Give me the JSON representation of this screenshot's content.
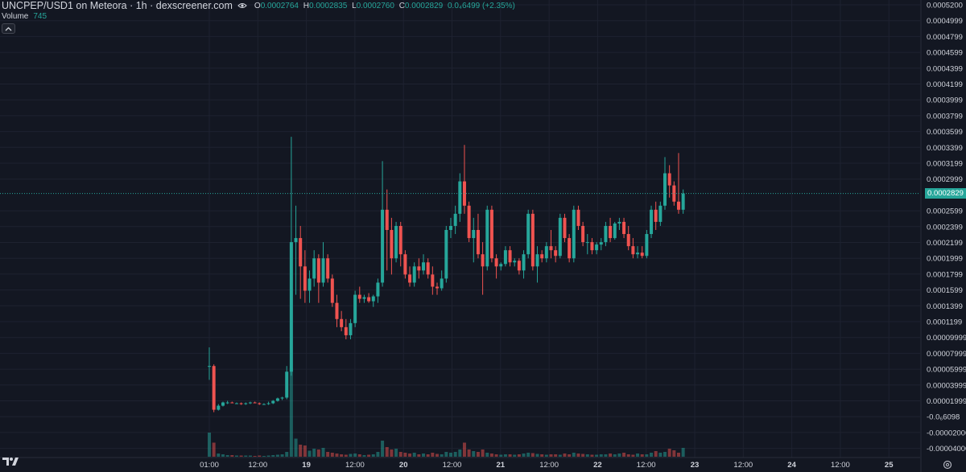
{
  "header": {
    "title": "UNCPEP/USD1 on Meteora · 1h · dexscreener.com",
    "ohlc": {
      "o_label": "O",
      "o_value": "0.0002764",
      "h_label": "H",
      "h_value": "0.0002835",
      "l_label": "L",
      "l_value": "0.0002760",
      "c_label": "C",
      "c_value": "0.0002829",
      "change": "0.0₄6499 (+2.35%)"
    },
    "volume_label": "Volume",
    "volume_value": "745"
  },
  "icons": {
    "eye": "eye-icon",
    "collapse": "chevron-up-icon",
    "logo": "tradingview-logo",
    "settings": "gear-icon"
  },
  "colors": {
    "background": "#131722",
    "up": "#26a69a",
    "down": "#ef5350",
    "grid": "#1e2230",
    "text": "#d1d4dc"
  },
  "price_axis": {
    "labels": [
      "0.0005200",
      "0.0004999",
      "0.0004799",
      "0.0004599",
      "0.0004399",
      "0.0004199",
      "0.0003999",
      "0.0003799",
      "0.0003599",
      "0.0003399",
      "0.0003199",
      "0.0002999",
      "0.0002599",
      "0.0002399",
      "0.0002199",
      "0.0001999",
      "0.0001799",
      "0.0001599",
      "0.0001399",
      "0.0001199",
      "0.00009999",
      "0.00007999",
      "0.00005999",
      "0.00003999",
      "0.00001999",
      "-0.0₆6098",
      "-0.00002000",
      "-0.00004000"
    ],
    "current_price": "0.0002829"
  },
  "time_axis": {
    "labels": [
      "01:00",
      "12:00",
      "19",
      "12:00",
      "20",
      "12:00",
      "21",
      "12:00",
      "22",
      "12:00",
      "23",
      "12:00",
      "24",
      "12:00",
      "25"
    ]
  },
  "chart_data": {
    "type": "candlestick",
    "title": "UNCPEP/USD1 on Meteora · 1h · dexscreener.com",
    "y_range": [
      -4e-05,
      0.00052
    ],
    "interval": "1h",
    "candles": [
      {
        "o": 7.2e-05,
        "h": 9.5e-05,
        "l": 5.5e-05,
        "c": 7.2e-05
      },
      {
        "o": 7.2e-05,
        "h": 7.4e-05,
        "l": 1.5e-05,
        "c": 1.8e-05
      },
      {
        "o": 1.8e-05,
        "h": 2.5e-05,
        "l": 1.7e-05,
        "c": 2.3e-05
      },
      {
        "o": 2.3e-05,
        "h": 2.8e-05,
        "l": 2.2e-05,
        "c": 2.7e-05
      },
      {
        "o": 2.7e-05,
        "h": 2.9e-05,
        "l": 2.5e-05,
        "c": 2.7e-05
      },
      {
        "o": 2.7e-05,
        "h": 2.8e-05,
        "l": 2.6e-05,
        "c": 2.6e-05
      },
      {
        "o": 2.6e-05,
        "h": 2.7e-05,
        "l": 2.5e-05,
        "c": 2.6e-05
      },
      {
        "o": 2.6e-05,
        "h": 2.7e-05,
        "l": 2.4e-05,
        "c": 2.5e-05
      },
      {
        "o": 2.5e-05,
        "h": 2.7e-05,
        "l": 2.4e-05,
        "c": 2.6e-05
      },
      {
        "o": 2.6e-05,
        "h": 2.8e-05,
        "l": 2.5e-05,
        "c": 2.7e-05
      },
      {
        "o": 2.7e-05,
        "h": 2.8e-05,
        "l": 2.6e-05,
        "c": 2.6e-05
      },
      {
        "o": 2.6e-05,
        "h": 2.7e-05,
        "l": 2.4e-05,
        "c": 2.5e-05
      },
      {
        "o": 2.5e-05,
        "h": 2.6e-05,
        "l": 2.4e-05,
        "c": 2.5e-05
      },
      {
        "o": 2.5e-05,
        "h": 2.8e-05,
        "l": 2.4e-05,
        "c": 2.6e-05
      },
      {
        "o": 2.6e-05,
        "h": 3e-05,
        "l": 2.5e-05,
        "c": 2.9e-05
      },
      {
        "o": 2.9e-05,
        "h": 3.3e-05,
        "l": 2.8e-05,
        "c": 3.2e-05
      },
      {
        "o": 3.2e-05,
        "h": 3.4e-05,
        "l": 3e-05,
        "c": 3.3e-05
      },
      {
        "o": 3.3e-05,
        "h": 7.2e-05,
        "l": 3.1e-05,
        "c": 6.5e-05
      },
      {
        "o": 6.5e-05,
        "h": 0.000355,
        "l": 6e-05,
        "c": 0.000225
      },
      {
        "o": 0.000225,
        "h": 0.00027,
        "l": 0.00016,
        "c": 0.00023
      },
      {
        "o": 0.00023,
        "h": 0.000245,
        "l": 0.000155,
        "c": 0.000195
      },
      {
        "o": 0.000195,
        "h": 0.000215,
        "l": 0.00015,
        "c": 0.000165
      },
      {
        "o": 0.000165,
        "h": 0.00019,
        "l": 0.00015,
        "c": 0.00018
      },
      {
        "o": 0.00018,
        "h": 0.000215,
        "l": 0.00017,
        "c": 0.000205
      },
      {
        "o": 0.000205,
        "h": 0.00021,
        "l": 0.00015,
        "c": 0.000175
      },
      {
        "o": 0.000175,
        "h": 0.000225,
        "l": 0.00017,
        "c": 0.000205
      },
      {
        "o": 0.000205,
        "h": 0.00021,
        "l": 0.000175,
        "c": 0.00018
      },
      {
        "o": 0.00018,
        "h": 0.000185,
        "l": 0.000145,
        "c": 0.00015
      },
      {
        "o": 0.00015,
        "h": 0.00016,
        "l": 0.00012,
        "c": 0.00013
      },
      {
        "o": 0.00013,
        "h": 0.00014,
        "l": 0.000115,
        "c": 0.00012
      },
      {
        "o": 0.00012,
        "h": 0.00013,
        "l": 0.000105,
        "c": 0.00011
      },
      {
        "o": 0.00011,
        "h": 0.00013,
        "l": 0.000105,
        "c": 0.000125
      },
      {
        "o": 0.000125,
        "h": 0.000165,
        "l": 0.00012,
        "c": 0.00016
      },
      {
        "o": 0.00016,
        "h": 0.00017,
        "l": 0.00015,
        "c": 0.000155
      },
      {
        "o": 0.000155,
        "h": 0.00016,
        "l": 0.00015,
        "c": 0.000157
      },
      {
        "o": 0.000157,
        "h": 0.000162,
        "l": 0.00015,
        "c": 0.000152
      },
      {
        "o": 0.000152,
        "h": 0.00016,
        "l": 0.000145,
        "c": 0.000158
      },
      {
        "o": 0.000158,
        "h": 0.00018,
        "l": 0.00015,
        "c": 0.000175
      },
      {
        "o": 0.000175,
        "h": 0.000325,
        "l": 0.00017,
        "c": 0.000265
      },
      {
        "o": 0.000265,
        "h": 0.00029,
        "l": 0.00019,
        "c": 0.00024
      },
      {
        "o": 0.00024,
        "h": 0.000255,
        "l": 0.000185,
        "c": 0.000205
      },
      {
        "o": 0.000205,
        "h": 0.00025,
        "l": 0.0002,
        "c": 0.000245
      },
      {
        "o": 0.000245,
        "h": 0.00025,
        "l": 0.000195,
        "c": 0.00021
      },
      {
        "o": 0.00021,
        "h": 0.000215,
        "l": 0.00018,
        "c": 0.000185
      },
      {
        "o": 0.000185,
        "h": 0.000195,
        "l": 0.00017,
        "c": 0.000175
      },
      {
        "o": 0.000175,
        "h": 0.0002,
        "l": 0.00017,
        "c": 0.000195
      },
      {
        "o": 0.000195,
        "h": 0.000205,
        "l": 0.00018,
        "c": 0.00019
      },
      {
        "o": 0.00019,
        "h": 0.00021,
        "l": 0.000185,
        "c": 0.0002
      },
      {
        "o": 0.0002,
        "h": 0.000205,
        "l": 0.00018,
        "c": 0.000185
      },
      {
        "o": 0.000185,
        "h": 0.000195,
        "l": 0.00016,
        "c": 0.00017
      },
      {
        "o": 0.00017,
        "h": 0.000175,
        "l": 0.00016,
        "c": 0.000168
      },
      {
        "o": 0.000168,
        "h": 0.00019,
        "l": 0.000165,
        "c": 0.00018
      },
      {
        "o": 0.00018,
        "h": 0.000245,
        "l": 0.000175,
        "c": 0.00024
      },
      {
        "o": 0.00024,
        "h": 0.000255,
        "l": 0.00023,
        "c": 0.000245
      },
      {
        "o": 0.000245,
        "h": 0.00027,
        "l": 0.000235,
        "c": 0.00026
      },
      {
        "o": 0.00026,
        "h": 0.00031,
        "l": 0.00025,
        "c": 0.0003
      },
      {
        "o": 0.0003,
        "h": 0.000345,
        "l": 0.00026,
        "c": 0.00027
      },
      {
        "o": 0.00027,
        "h": 0.000275,
        "l": 0.000225,
        "c": 0.00023
      },
      {
        "o": 0.00023,
        "h": 0.000255,
        "l": 0.0002,
        "c": 0.00024
      },
      {
        "o": 0.00024,
        "h": 0.00026,
        "l": 0.000205,
        "c": 0.00021
      },
      {
        "o": 0.00021,
        "h": 0.000225,
        "l": 0.00016,
        "c": 0.000195
      },
      {
        "o": 0.000195,
        "h": 0.00027,
        "l": 0.00019,
        "c": 0.000265
      },
      {
        "o": 0.000265,
        "h": 0.00027,
        "l": 0.0002,
        "c": 0.000205
      },
      {
        "o": 0.000205,
        "h": 0.00021,
        "l": 0.00018,
        "c": 0.000195
      },
      {
        "o": 0.000195,
        "h": 0.0002,
        "l": 0.00019,
        "c": 0.000198
      },
      {
        "o": 0.000198,
        "h": 0.00022,
        "l": 0.000195,
        "c": 0.000215
      },
      {
        "o": 0.000215,
        "h": 0.00022,
        "l": 0.000195,
        "c": 0.0002
      },
      {
        "o": 0.0002,
        "h": 0.000205,
        "l": 0.000195,
        "c": 0.000202
      },
      {
        "o": 0.000202,
        "h": 0.000205,
        "l": 0.000185,
        "c": 0.00019
      },
      {
        "o": 0.00019,
        "h": 0.000215,
        "l": 0.00018,
        "c": 0.00021
      },
      {
        "o": 0.00021,
        "h": 0.000265,
        "l": 0.000205,
        "c": 0.00026
      },
      {
        "o": 0.00026,
        "h": 0.000265,
        "l": 0.00019,
        "c": 0.000195
      },
      {
        "o": 0.000195,
        "h": 0.00022,
        "l": 0.000175,
        "c": 0.00021
      },
      {
        "o": 0.00021,
        "h": 0.000215,
        "l": 0.0002,
        "c": 0.000205
      },
      {
        "o": 0.000205,
        "h": 0.000225,
        "l": 0.0002,
        "c": 0.00022
      },
      {
        "o": 0.00022,
        "h": 0.00024,
        "l": 0.000205,
        "c": 0.000215
      },
      {
        "o": 0.000215,
        "h": 0.00022,
        "l": 0.0002,
        "c": 0.000208
      },
      {
        "o": 0.000208,
        "h": 0.00026,
        "l": 0.000205,
        "c": 0.000255
      },
      {
        "o": 0.000255,
        "h": 0.00026,
        "l": 0.000225,
        "c": 0.00023
      },
      {
        "o": 0.00023,
        "h": 0.000235,
        "l": 0.0002,
        "c": 0.000205
      },
      {
        "o": 0.000205,
        "h": 0.00027,
        "l": 0.0002,
        "c": 0.000265
      },
      {
        "o": 0.000265,
        "h": 0.00027,
        "l": 0.00024,
        "c": 0.000245
      },
      {
        "o": 0.000245,
        "h": 0.00025,
        "l": 0.00022,
        "c": 0.000225
      },
      {
        "o": 0.000225,
        "h": 0.000235,
        "l": 0.00021,
        "c": 0.000225
      },
      {
        "o": 0.000225,
        "h": 0.00023,
        "l": 0.00021,
        "c": 0.000215
      },
      {
        "o": 0.000215,
        "h": 0.000225,
        "l": 0.00021,
        "c": 0.000222
      },
      {
        "o": 0.000222,
        "h": 0.00023,
        "l": 0.000215,
        "c": 0.000225
      },
      {
        "o": 0.000225,
        "h": 0.00025,
        "l": 0.00022,
        "c": 0.000245
      },
      {
        "o": 0.000245,
        "h": 0.000255,
        "l": 0.000225,
        "c": 0.00023
      },
      {
        "o": 0.00023,
        "h": 0.00025,
        "l": 0.000228,
        "c": 0.000248
      },
      {
        "o": 0.000248,
        "h": 0.000255,
        "l": 0.00024,
        "c": 0.00025
      },
      {
        "o": 0.00025,
        "h": 0.000255,
        "l": 0.00023,
        "c": 0.000235
      },
      {
        "o": 0.000235,
        "h": 0.000245,
        "l": 0.000215,
        "c": 0.00022
      },
      {
        "o": 0.00022,
        "h": 0.00023,
        "l": 0.000205,
        "c": 0.00021
      },
      {
        "o": 0.00021,
        "h": 0.00022,
        "l": 0.000205,
        "c": 0.000212
      },
      {
        "o": 0.000212,
        "h": 0.00022,
        "l": 0.000205,
        "c": 0.000208
      },
      {
        "o": 0.000208,
        "h": 0.00024,
        "l": 0.000205,
        "c": 0.000235
      },
      {
        "o": 0.000235,
        "h": 0.00027,
        "l": 0.00023,
        "c": 0.000265
      },
      {
        "o": 0.000265,
        "h": 0.000275,
        "l": 0.00024,
        "c": 0.00025
      },
      {
        "o": 0.00025,
        "h": 0.000275,
        "l": 0.000245,
        "c": 0.00027
      },
      {
        "o": 0.00027,
        "h": 0.00033,
        "l": 0.000265,
        "c": 0.00031
      },
      {
        "o": 0.00031,
        "h": 0.00032,
        "l": 0.00028,
        "c": 0.000295
      },
      {
        "o": 0.000295,
        "h": 0.0003,
        "l": 0.00027,
        "c": 0.000275
      },
      {
        "o": 0.000275,
        "h": 0.000335,
        "l": 0.00026,
        "c": 0.000265
      },
      {
        "o": 0.000265,
        "h": 0.00029,
        "l": 0.00026,
        "c": 0.000285
      }
    ],
    "volumes": [
      60,
      35,
      8,
      6,
      4,
      4,
      3,
      3,
      3,
      3,
      2,
      3,
      2,
      3,
      4,
      5,
      6,
      12,
      220,
      45,
      30,
      28,
      15,
      20,
      18,
      22,
      12,
      10,
      8,
      6,
      5,
      7,
      8,
      6,
      4,
      5,
      6,
      12,
      40,
      24,
      18,
      20,
      12,
      10,
      8,
      10,
      6,
      8,
      6,
      10,
      7,
      6,
      12,
      10,
      12,
      18,
      35,
      18,
      14,
      12,
      18,
      10,
      8,
      6,
      5,
      6,
      6,
      5,
      6,
      8,
      10,
      9,
      7,
      6,
      5,
      6,
      6,
      5,
      8,
      6,
      10,
      8,
      7,
      6,
      5,
      5,
      6,
      6,
      8,
      6,
      8,
      10,
      6,
      5,
      8,
      6,
      6,
      10,
      14,
      10,
      12,
      20,
      16,
      10,
      22,
      12
    ]
  }
}
